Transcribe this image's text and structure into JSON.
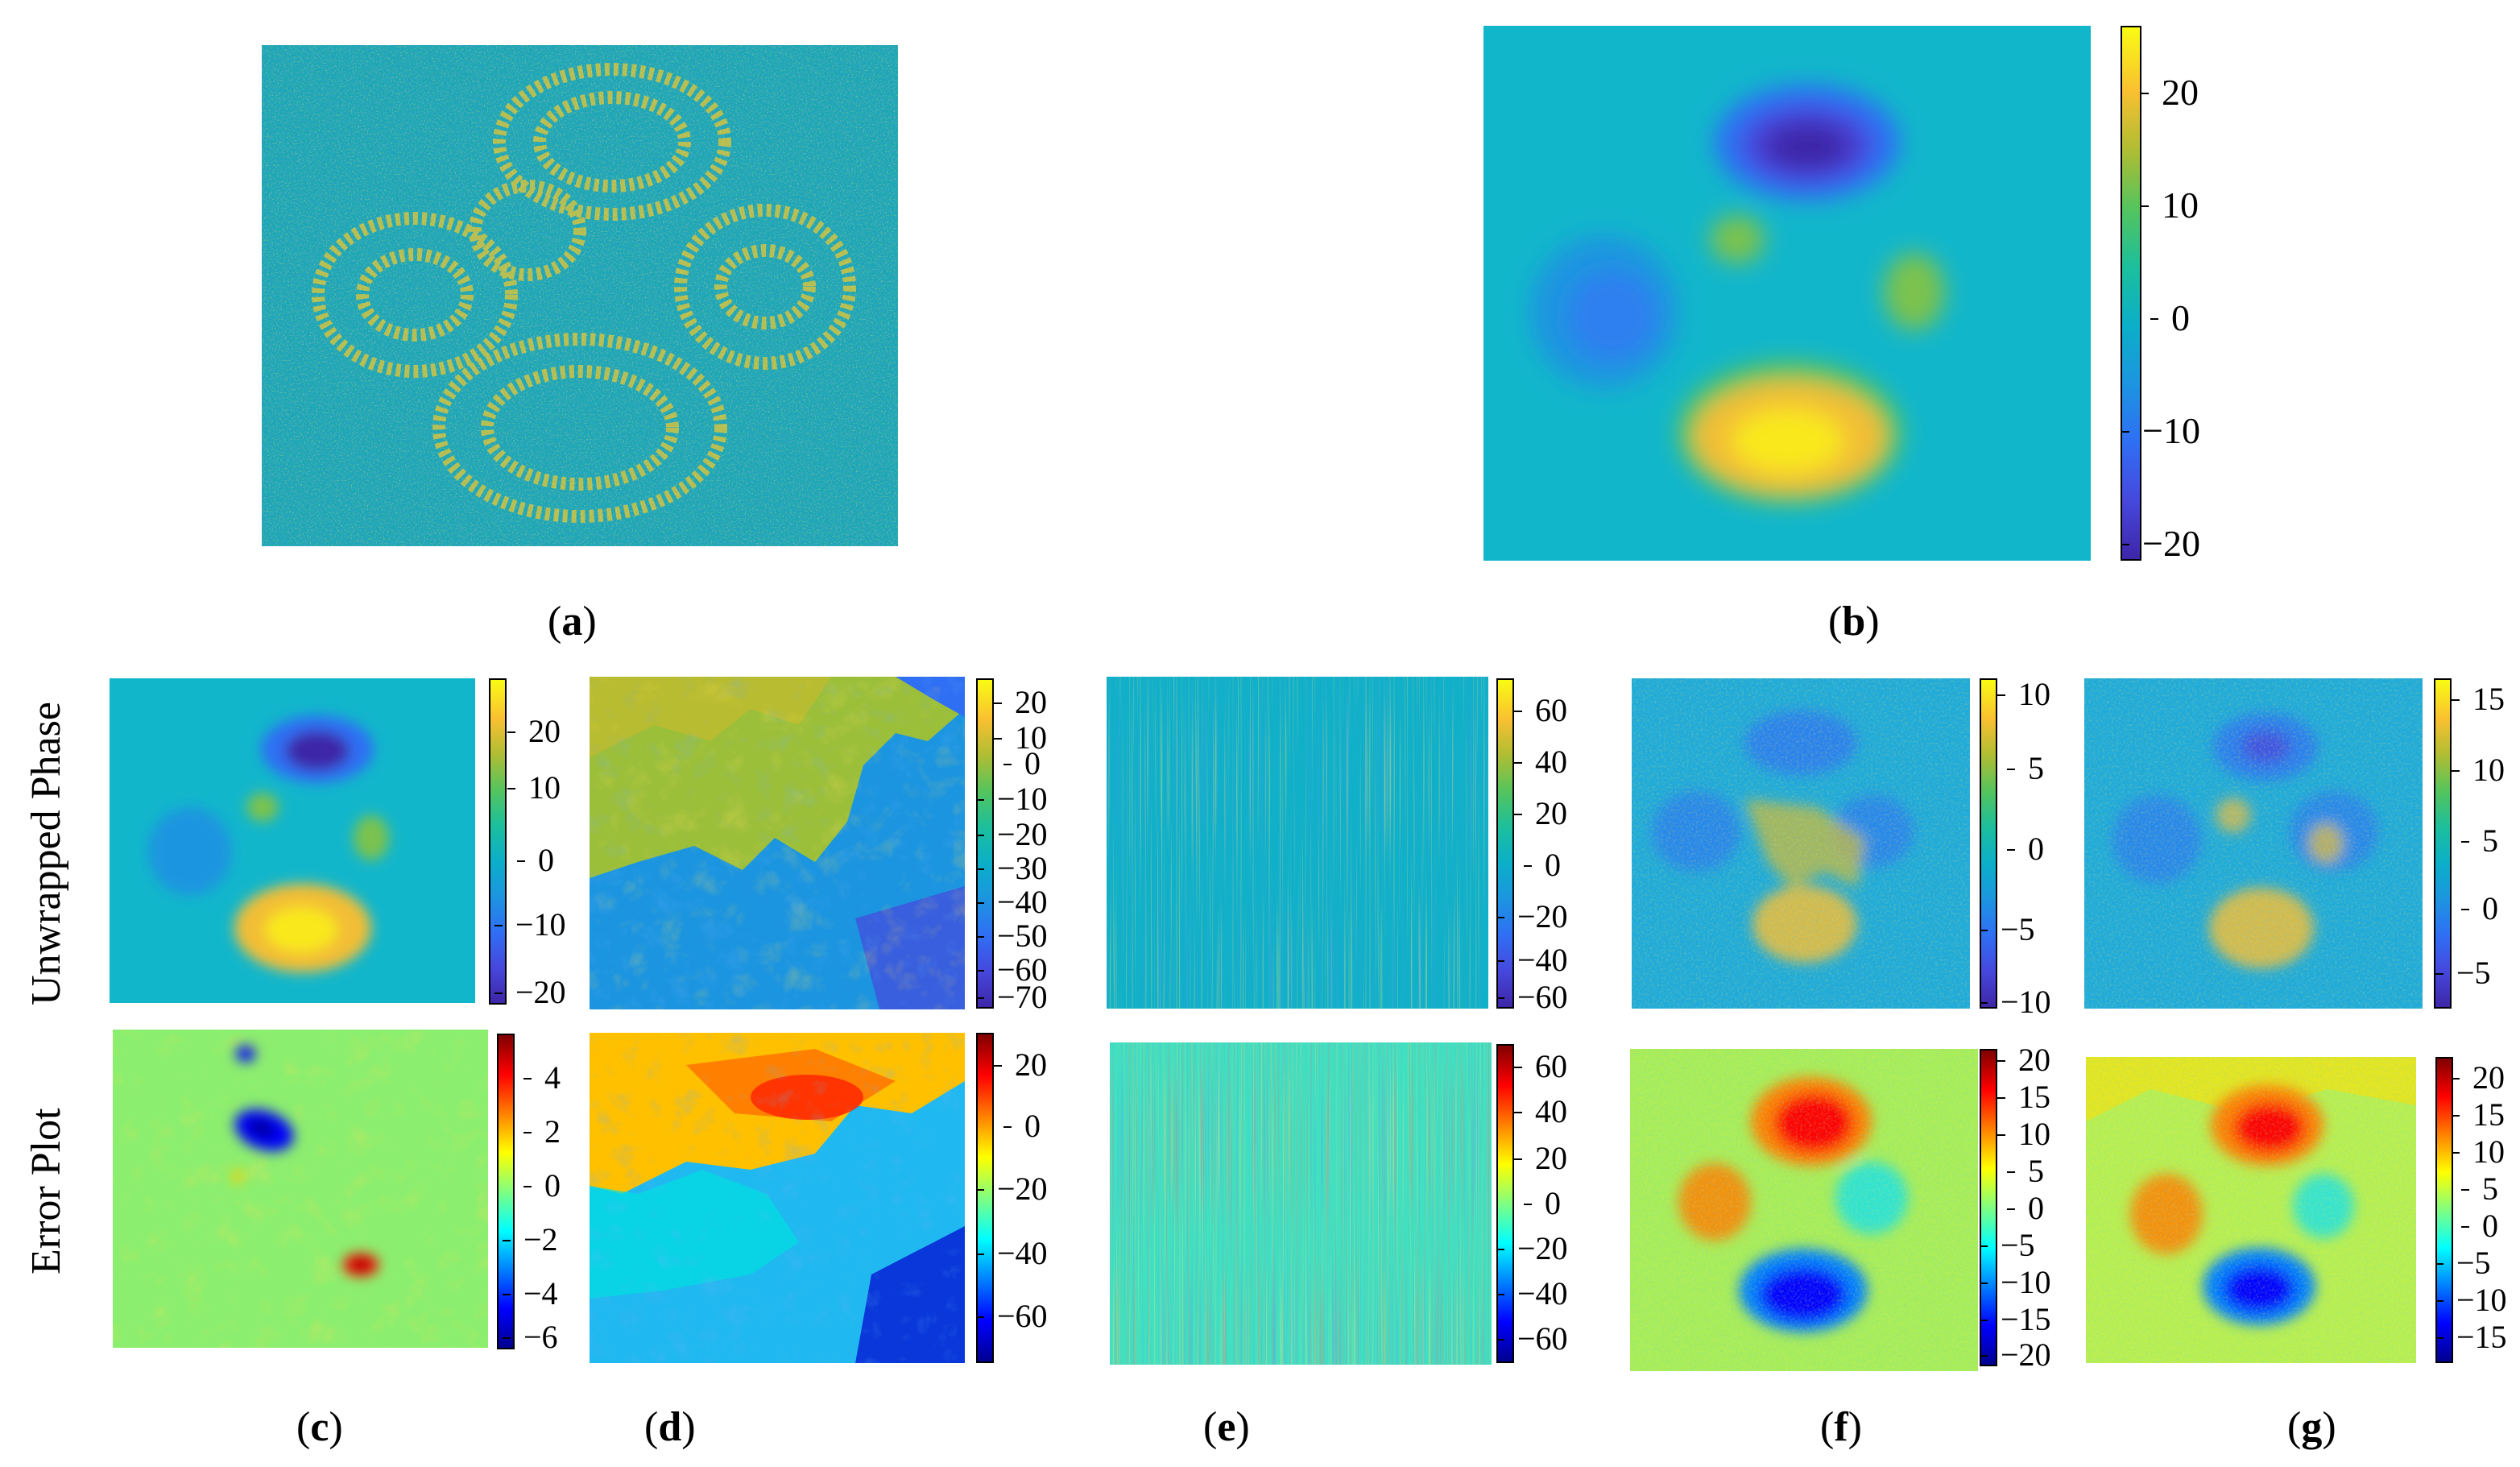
{
  "row_labels": {
    "top": "Unwrapped Phase",
    "bottom": "Error Plot"
  },
  "captions": [
    "a",
    "b",
    "c",
    "d",
    "e",
    "f",
    "g"
  ],
  "colormaps": {
    "parula": [
      "#3e26a8",
      "#4648dd",
      "#2f6ff4",
      "#1c95e0",
      "#0bafc8",
      "#1cbf9c",
      "#55c45d",
      "#b0bd33",
      "#f9c031",
      "#f9fb14"
    ],
    "jet": [
      "#00008f",
      "#0000ff",
      "#0080ff",
      "#00ffff",
      "#80ff80",
      "#ffff00",
      "#ff8000",
      "#ff0000",
      "#800000"
    ]
  },
  "colorbars": {
    "b": [
      "20",
      "10",
      "0",
      "−10",
      "−20"
    ],
    "c_top": [
      "20",
      "10",
      "0",
      "−10",
      "−20"
    ],
    "d_top": [
      "20",
      "10",
      "0",
      "−10",
      "−20",
      "−30",
      "−40",
      "−50",
      "−60",
      "−70"
    ],
    "e_top": [
      "60",
      "40",
      "20",
      "0",
      "−20",
      "−40",
      "−60"
    ],
    "f_top": [
      "10",
      "5",
      "0",
      "−5",
      "−10"
    ],
    "g_top": [
      "15",
      "10",
      "5",
      "0",
      "−5"
    ],
    "c_bot": [
      "4",
      "2",
      "0",
      "−2",
      "−4",
      "−6"
    ],
    "d_bot": [
      "20",
      "0",
      "−20",
      "−40",
      "−60"
    ],
    "e_bot": [
      "60",
      "40",
      "20",
      "0",
      "−20",
      "−40",
      "−60"
    ],
    "f_bot": [
      "20",
      "15",
      "10",
      "5",
      "0",
      "−5",
      "−10",
      "−15",
      "−20"
    ],
    "g_bot": [
      "20",
      "15",
      "10",
      "5",
      "0",
      "−5",
      "−10",
      "−15"
    ]
  }
}
